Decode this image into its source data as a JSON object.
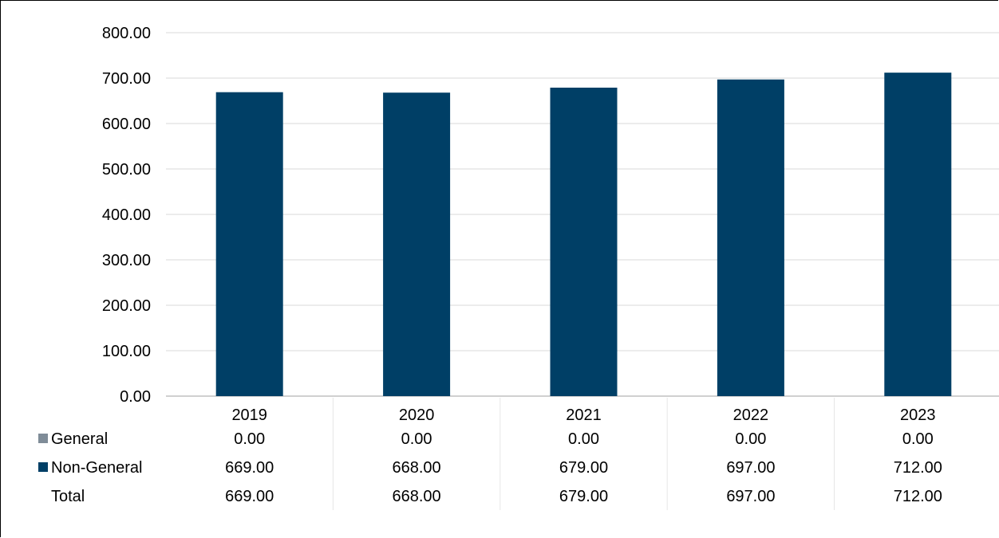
{
  "chart_data": {
    "type": "bar",
    "stacked": true,
    "categories": [
      "2019",
      "2020",
      "2021",
      "2022",
      "2023"
    ],
    "series": [
      {
        "name": "General",
        "color": "#7f8c98",
        "values": [
          0,
          0,
          0,
          0,
          0
        ],
        "labels": [
          "0.00",
          "0.00",
          "0.00",
          "0.00",
          "0.00"
        ]
      },
      {
        "name": "Non-General",
        "color": "#003f66",
        "values": [
          669,
          668,
          679,
          697,
          712
        ],
        "labels": [
          "669.00",
          "668.00",
          "679.00",
          "697.00",
          "712.00"
        ]
      }
    ],
    "total": {
      "name": "Total",
      "labels": [
        "669.00",
        "668.00",
        "679.00",
        "697.00",
        "712.00"
      ]
    },
    "yticks": [
      "0.00",
      "100.00",
      "200.00",
      "300.00",
      "400.00",
      "500.00",
      "600.00",
      "700.00",
      "800.00"
    ],
    "ylim": [
      0,
      800
    ],
    "grid": true,
    "legend": "data-table"
  }
}
